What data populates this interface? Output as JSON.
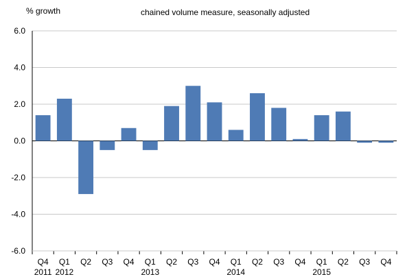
{
  "chart_data": {
    "type": "bar",
    "ylabel": "% growth",
    "annotation": "chained volume measure, seasonally adjusted",
    "ylim": [
      -6.0,
      6.0
    ],
    "yticks": [
      "6.0",
      "4.0",
      "2.0",
      "0.0",
      "-2.0",
      "-4.0",
      "-6.0"
    ],
    "grid": "horizontal",
    "categories": [
      "Q4",
      "Q1",
      "Q2",
      "Q3",
      "Q4",
      "Q1",
      "Q2",
      "Q3",
      "Q4",
      "Q1",
      "Q2",
      "Q3",
      "Q4",
      "Q1",
      "Q2",
      "Q3",
      "Q4"
    ],
    "years": [
      {
        "label": "2011",
        "index": 0
      },
      {
        "label": "2012",
        "index": 1
      },
      {
        "label": "2013",
        "index": 5
      },
      {
        "label": "2014",
        "index": 9
      },
      {
        "label": "2015",
        "index": 13
      }
    ],
    "values": [
      1.4,
      2.3,
      -2.9,
      -0.5,
      0.7,
      -0.5,
      1.9,
      3.0,
      2.1,
      0.6,
      2.6,
      1.8,
      0.1,
      1.4,
      1.6,
      -0.1,
      -0.1
    ],
    "bar_color": "#4f7bb5",
    "grid_color": "#c8c8c8"
  }
}
